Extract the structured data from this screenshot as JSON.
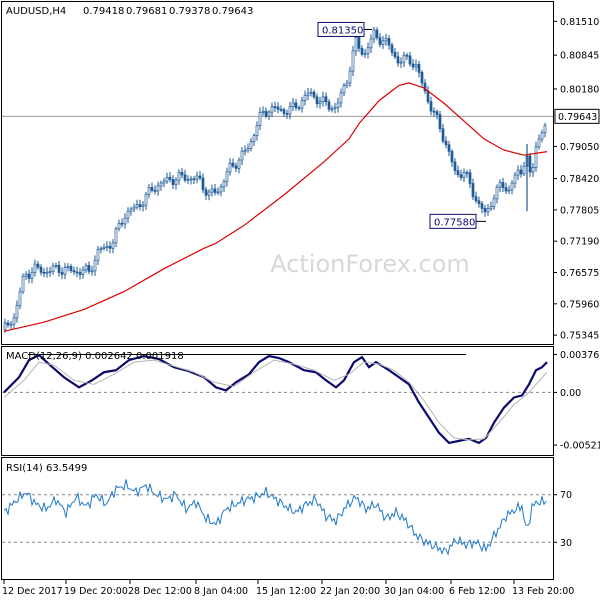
{
  "chart_data": [
    {
      "type": "candlestick",
      "panel": "price",
      "title": "AUDUSD,H4",
      "ohlc": [
        "0.79418",
        "0.79681",
        "0.79378",
        "0.79643"
      ],
      "ylim": [
        0.7521,
        0.8185
      ],
      "yticks": [
        "0.81510",
        "0.80845",
        "0.80180",
        "0.79643",
        "0.79050",
        "0.78420",
        "0.77805",
        "0.77190",
        "0.76575",
        "0.75960",
        "0.75345"
      ],
      "last_price": "0.79643",
      "annotations": [
        {
          "label": "0.81350",
          "price": 0.8135
        },
        {
          "label": "0.77580",
          "price": 0.7758
        }
      ],
      "watermark": "ActionForex.com",
      "series": [
        {
          "name": "",
          "color": "#dd0000",
          "kind": "moving-average",
          "points": [
            [
              0,
              0.7542
            ],
            [
              40,
              0.756
            ],
            [
              80,
              0.7585
            ],
            [
              120,
              0.762
            ],
            [
              160,
              0.7665
            ],
            [
              200,
              0.7705
            ],
            [
              212,
              0.7715
            ],
            [
              240,
              0.775
            ],
            [
              280,
              0.781
            ],
            [
              320,
              0.7875
            ],
            [
              345,
              0.792
            ],
            [
              355,
              0.795
            ],
            [
              375,
              0.7995
            ],
            [
              395,
              0.8025
            ],
            [
              405,
              0.803
            ],
            [
              420,
              0.802
            ],
            [
              440,
              0.799
            ],
            [
              460,
              0.7955
            ],
            [
              480,
              0.792
            ],
            [
              500,
              0.7898
            ],
            [
              520,
              0.7888
            ],
            [
              543,
              0.7895
            ]
          ]
        },
        {
          "name": "",
          "color": "#1e5a96",
          "kind": "price-path",
          "points": [
            [
              0,
              0.7545
            ],
            [
              10,
              0.757
            ],
            [
              20,
              0.765
            ],
            [
              30,
              0.7665
            ],
            [
              40,
              0.766
            ],
            [
              55,
              0.7665
            ],
            [
              70,
              0.766
            ],
            [
              85,
              0.766
            ],
            [
              95,
              0.77
            ],
            [
              108,
              0.7715
            ],
            [
              120,
              0.777
            ],
            [
              135,
              0.779
            ],
            [
              150,
              0.7825
            ],
            [
              165,
              0.784
            ],
            [
              180,
              0.7845
            ],
            [
              195,
              0.784
            ],
            [
              205,
              0.781
            ],
            [
              215,
              0.782
            ],
            [
              225,
              0.786
            ],
            [
              235,
              0.788
            ],
            [
              245,
              0.7905
            ],
            [
              255,
              0.796
            ],
            [
              265,
              0.798
            ],
            [
              280,
              0.7975
            ],
            [
              290,
              0.798
            ],
            [
              305,
              0.801
            ],
            [
              320,
              0.799
            ],
            [
              332,
              0.798
            ],
            [
              342,
              0.803
            ],
            [
              352,
              0.811
            ],
            [
              360,
              0.8085
            ],
            [
              370,
              0.8125
            ],
            [
              378,
              0.8115
            ],
            [
              386,
              0.81
            ],
            [
              395,
              0.807
            ],
            [
              405,
              0.808
            ],
            [
              412,
              0.806
            ],
            [
              420,
              0.802
            ],
            [
              428,
              0.7975
            ],
            [
              435,
              0.795
            ],
            [
              445,
              0.789
            ],
            [
              452,
              0.785
            ],
            [
              460,
              0.7855
            ],
            [
              468,
              0.782
            ],
            [
              475,
              0.779
            ],
            [
              482,
              0.777
            ],
            [
              490,
              0.781
            ],
            [
              498,
              0.783
            ],
            [
              505,
              0.782
            ],
            [
              512,
              0.785
            ],
            [
              518,
              0.7855
            ],
            [
              522,
              0.79
            ],
            [
              527,
              0.783
            ],
            [
              532,
              0.791
            ],
            [
              537,
              0.793
            ],
            [
              543,
              0.7955
            ]
          ]
        }
      ]
    },
    {
      "type": "line",
      "panel": "macd",
      "title": "MACD(12,26,9) 0.002642 0.001918",
      "ylim": [
        -0.0061,
        0.0044
      ],
      "yticks": [
        "0.003762",
        "0.00",
        "-0.005216"
      ],
      "series": [
        {
          "name": "",
          "color": "#0a0a6e",
          "points": [
            [
              0,
              0.0
            ],
            [
              15,
              0.0015
            ],
            [
              25,
              0.0032
            ],
            [
              35,
              0.0037
            ],
            [
              45,
              0.0028
            ],
            [
              60,
              0.0015
            ],
            [
              75,
              0.0005
            ],
            [
              88,
              0.0012
            ],
            [
              100,
              0.002
            ],
            [
              112,
              0.0022
            ],
            [
              125,
              0.0032
            ],
            [
              140,
              0.0036
            ],
            [
              155,
              0.0033
            ],
            [
              170,
              0.0025
            ],
            [
              185,
              0.0021
            ],
            [
              200,
              0.0015
            ],
            [
              212,
              0.0005
            ],
            [
              222,
              0.0002
            ],
            [
              232,
              0.001
            ],
            [
              245,
              0.0018
            ],
            [
              255,
              0.003
            ],
            [
              265,
              0.0036
            ],
            [
              275,
              0.0034
            ],
            [
              285,
              0.003
            ],
            [
              300,
              0.0022
            ],
            [
              312,
              0.002
            ],
            [
              322,
              0.0012
            ],
            [
              332,
              0.0005
            ],
            [
              340,
              0.0012
            ],
            [
              350,
              0.003
            ],
            [
              358,
              0.0035
            ],
            [
              365,
              0.0025
            ],
            [
              372,
              0.003
            ],
            [
              385,
              0.0022
            ],
            [
              395,
              0.0015
            ],
            [
              405,
              0.0008
            ],
            [
              415,
              -0.001
            ],
            [
              425,
              -0.0025
            ],
            [
              435,
              -0.004
            ],
            [
              445,
              -0.005
            ],
            [
              455,
              -0.0048
            ],
            [
              465,
              -0.0046
            ],
            [
              475,
              -0.005
            ],
            [
              482,
              -0.0045
            ],
            [
              490,
              -0.003
            ],
            [
              500,
              -0.0015
            ],
            [
              510,
              -0.0005
            ],
            [
              518,
              -0.0003
            ],
            [
              525,
              0.0008
            ],
            [
              532,
              0.0022
            ],
            [
              538,
              0.0025
            ],
            [
              543,
              0.003
            ]
          ]
        },
        {
          "name": "",
          "color": "#b4b4b4",
          "points": [
            [
              0,
              -0.0005
            ],
            [
              20,
              0.0012
            ],
            [
              35,
              0.003
            ],
            [
              50,
              0.0027
            ],
            [
              70,
              0.0012
            ],
            [
              90,
              0.0008
            ],
            [
              110,
              0.0018
            ],
            [
              130,
              0.003
            ],
            [
              150,
              0.0032
            ],
            [
              170,
              0.0026
            ],
            [
              190,
              0.002
            ],
            [
              210,
              0.001
            ],
            [
              230,
              0.0006
            ],
            [
              250,
              0.002
            ],
            [
              270,
              0.0032
            ],
            [
              290,
              0.0028
            ],
            [
              310,
              0.0022
            ],
            [
              330,
              0.0012
            ],
            [
              345,
              0.0018
            ],
            [
              360,
              0.003
            ],
            [
              375,
              0.0028
            ],
            [
              390,
              0.0022
            ],
            [
              405,
              0.001
            ],
            [
              420,
              -0.0008
            ],
            [
              435,
              -0.003
            ],
            [
              450,
              -0.0045
            ],
            [
              465,
              -0.0047
            ],
            [
              480,
              -0.0046
            ],
            [
              495,
              -0.003
            ],
            [
              510,
              -0.0012
            ],
            [
              525,
              0.0
            ],
            [
              543,
              0.002
            ]
          ]
        }
      ]
    },
    {
      "type": "line",
      "panel": "rsi",
      "title": "RSI(14) 63.5499",
      "ylim": [
        0,
        100
      ],
      "yticks": [
        "70",
        "30"
      ],
      "series": [
        {
          "name": "",
          "color": "#1e78c8",
          "points": [
            [
              0,
              55
            ],
            [
              12,
              65
            ],
            [
              22,
              72
            ],
            [
              32,
              62
            ],
            [
              42,
              58
            ],
            [
              52,
              66
            ],
            [
              62,
              55
            ],
            [
              72,
              68
            ],
            [
              82,
              60
            ],
            [
              92,
              70
            ],
            [
              102,
              62
            ],
            [
              112,
              75
            ],
            [
              122,
              78
            ],
            [
              132,
              72
            ],
            [
              142,
              78
            ],
            [
              152,
              70
            ],
            [
              162,
              66
            ],
            [
              172,
              70
            ],
            [
              182,
              58
            ],
            [
              192,
              64
            ],
            [
              202,
              50
            ],
            [
              212,
              45
            ],
            [
              222,
              58
            ],
            [
              232,
              62
            ],
            [
              242,
              66
            ],
            [
              252,
              68
            ],
            [
              262,
              72
            ],
            [
              272,
              66
            ],
            [
              282,
              60
            ],
            [
              292,
              55
            ],
            [
              302,
              62
            ],
            [
              312,
              66
            ],
            [
              322,
              52
            ],
            [
              332,
              48
            ],
            [
              342,
              60
            ],
            [
              352,
              68
            ],
            [
              362,
              58
            ],
            [
              372,
              62
            ],
            [
              382,
              50
            ],
            [
              392,
              55
            ],
            [
              402,
              48
            ],
            [
              412,
              36
            ],
            [
              422,
              30
            ],
            [
              432,
              26
            ],
            [
              442,
              22
            ],
            [
              452,
              32
            ],
            [
              462,
              28
            ],
            [
              472,
              30
            ],
            [
              482,
              24
            ],
            [
              492,
              38
            ],
            [
              502,
              52
            ],
            [
              512,
              58
            ],
            [
              518,
              60
            ],
            [
              523,
              38
            ],
            [
              528,
              60
            ],
            [
              534,
              64
            ],
            [
              543,
              64
            ]
          ]
        }
      ]
    },
    {
      "type": "axis",
      "panel": "time",
      "xticks": [
        "12 Dec 2017",
        "19 Dec 20:00",
        "28 Dec 12:00",
        "8 Jan 04:00",
        "15 Jan 12:00",
        "22 Jan 20:00",
        "30 Jan 04:00",
        "6 Feb 12:00",
        "13 Feb 20:00"
      ]
    }
  ]
}
